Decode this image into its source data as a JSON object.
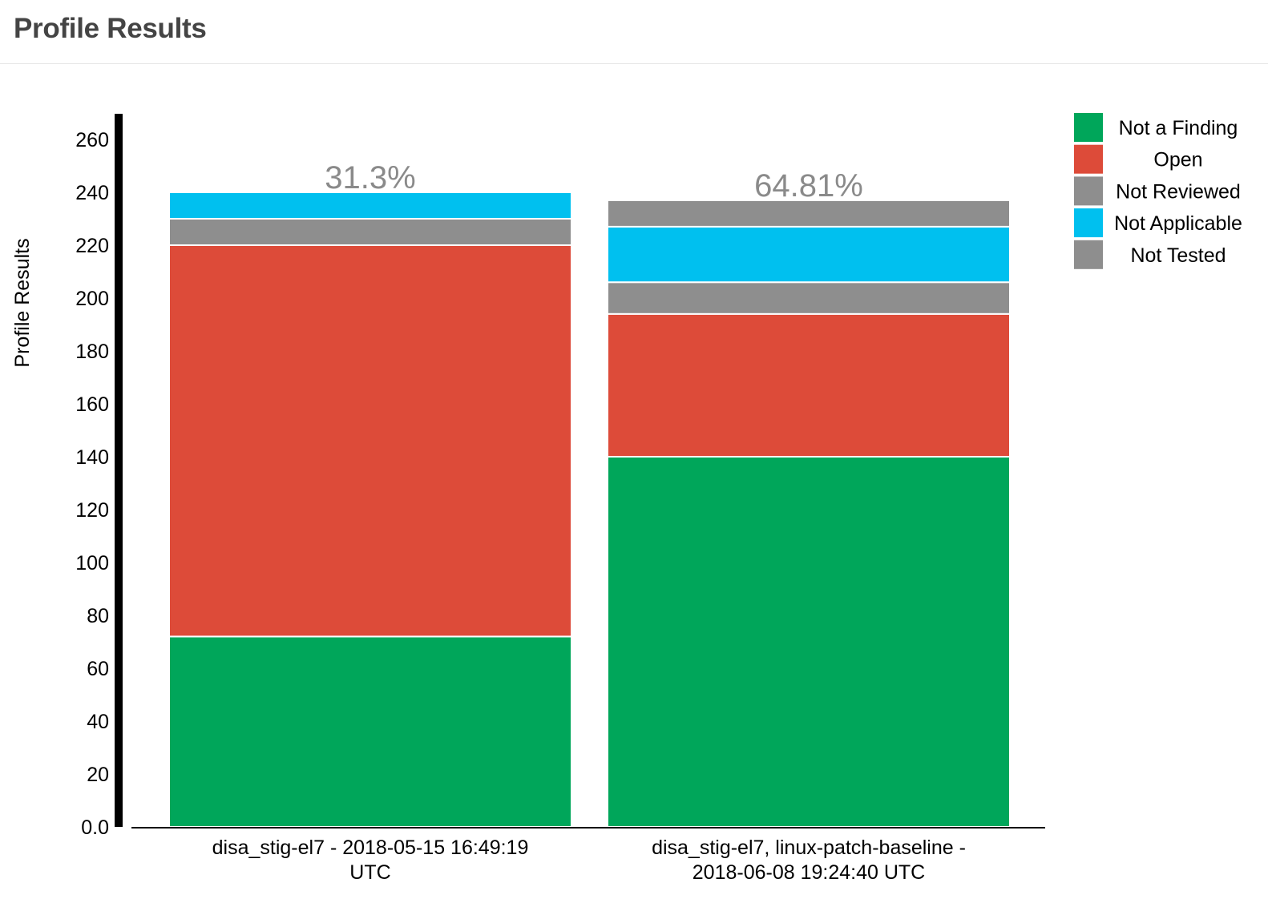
{
  "page": {
    "title": "Profile Results"
  },
  "chart_data": {
    "type": "bar",
    "stacked": true,
    "ylabel": "Profile Results",
    "xlabel": "",
    "ylim": [
      0,
      270
    ],
    "yticks": [
      "0.0",
      "20",
      "40",
      "60",
      "80",
      "100",
      "120",
      "140",
      "160",
      "180",
      "200",
      "220",
      "240",
      "260"
    ],
    "ytick_values": [
      0,
      20,
      40,
      60,
      80,
      100,
      120,
      140,
      160,
      180,
      200,
      220,
      240,
      260
    ],
    "categories": [
      [
        "disa_stig-el7 - 2018-05-15 16:49:19",
        "UTC"
      ],
      [
        "disa_stig-el7, linux-patch-baseline -",
        "2018-06-08 19:24:40 UTC"
      ]
    ],
    "bar_top_labels": [
      "31.3%",
      "64.81%"
    ],
    "legend_position": "top-right",
    "series": [
      {
        "name": "Not a Finding",
        "color": "#00a65a",
        "values": [
          72,
          140
        ]
      },
      {
        "name": "Open",
        "color": "#dd4b39",
        "values": [
          148,
          54
        ]
      },
      {
        "name": "Not Reviewed",
        "color": "#8e8e8e",
        "values": [
          10,
          12
        ]
      },
      {
        "name": "Not Applicable",
        "color": "#00c0ef",
        "values": [
          10,
          21
        ]
      },
      {
        "name": "Not Tested",
        "color": "#8e8e8e",
        "values": [
          0,
          10
        ]
      }
    ]
  }
}
